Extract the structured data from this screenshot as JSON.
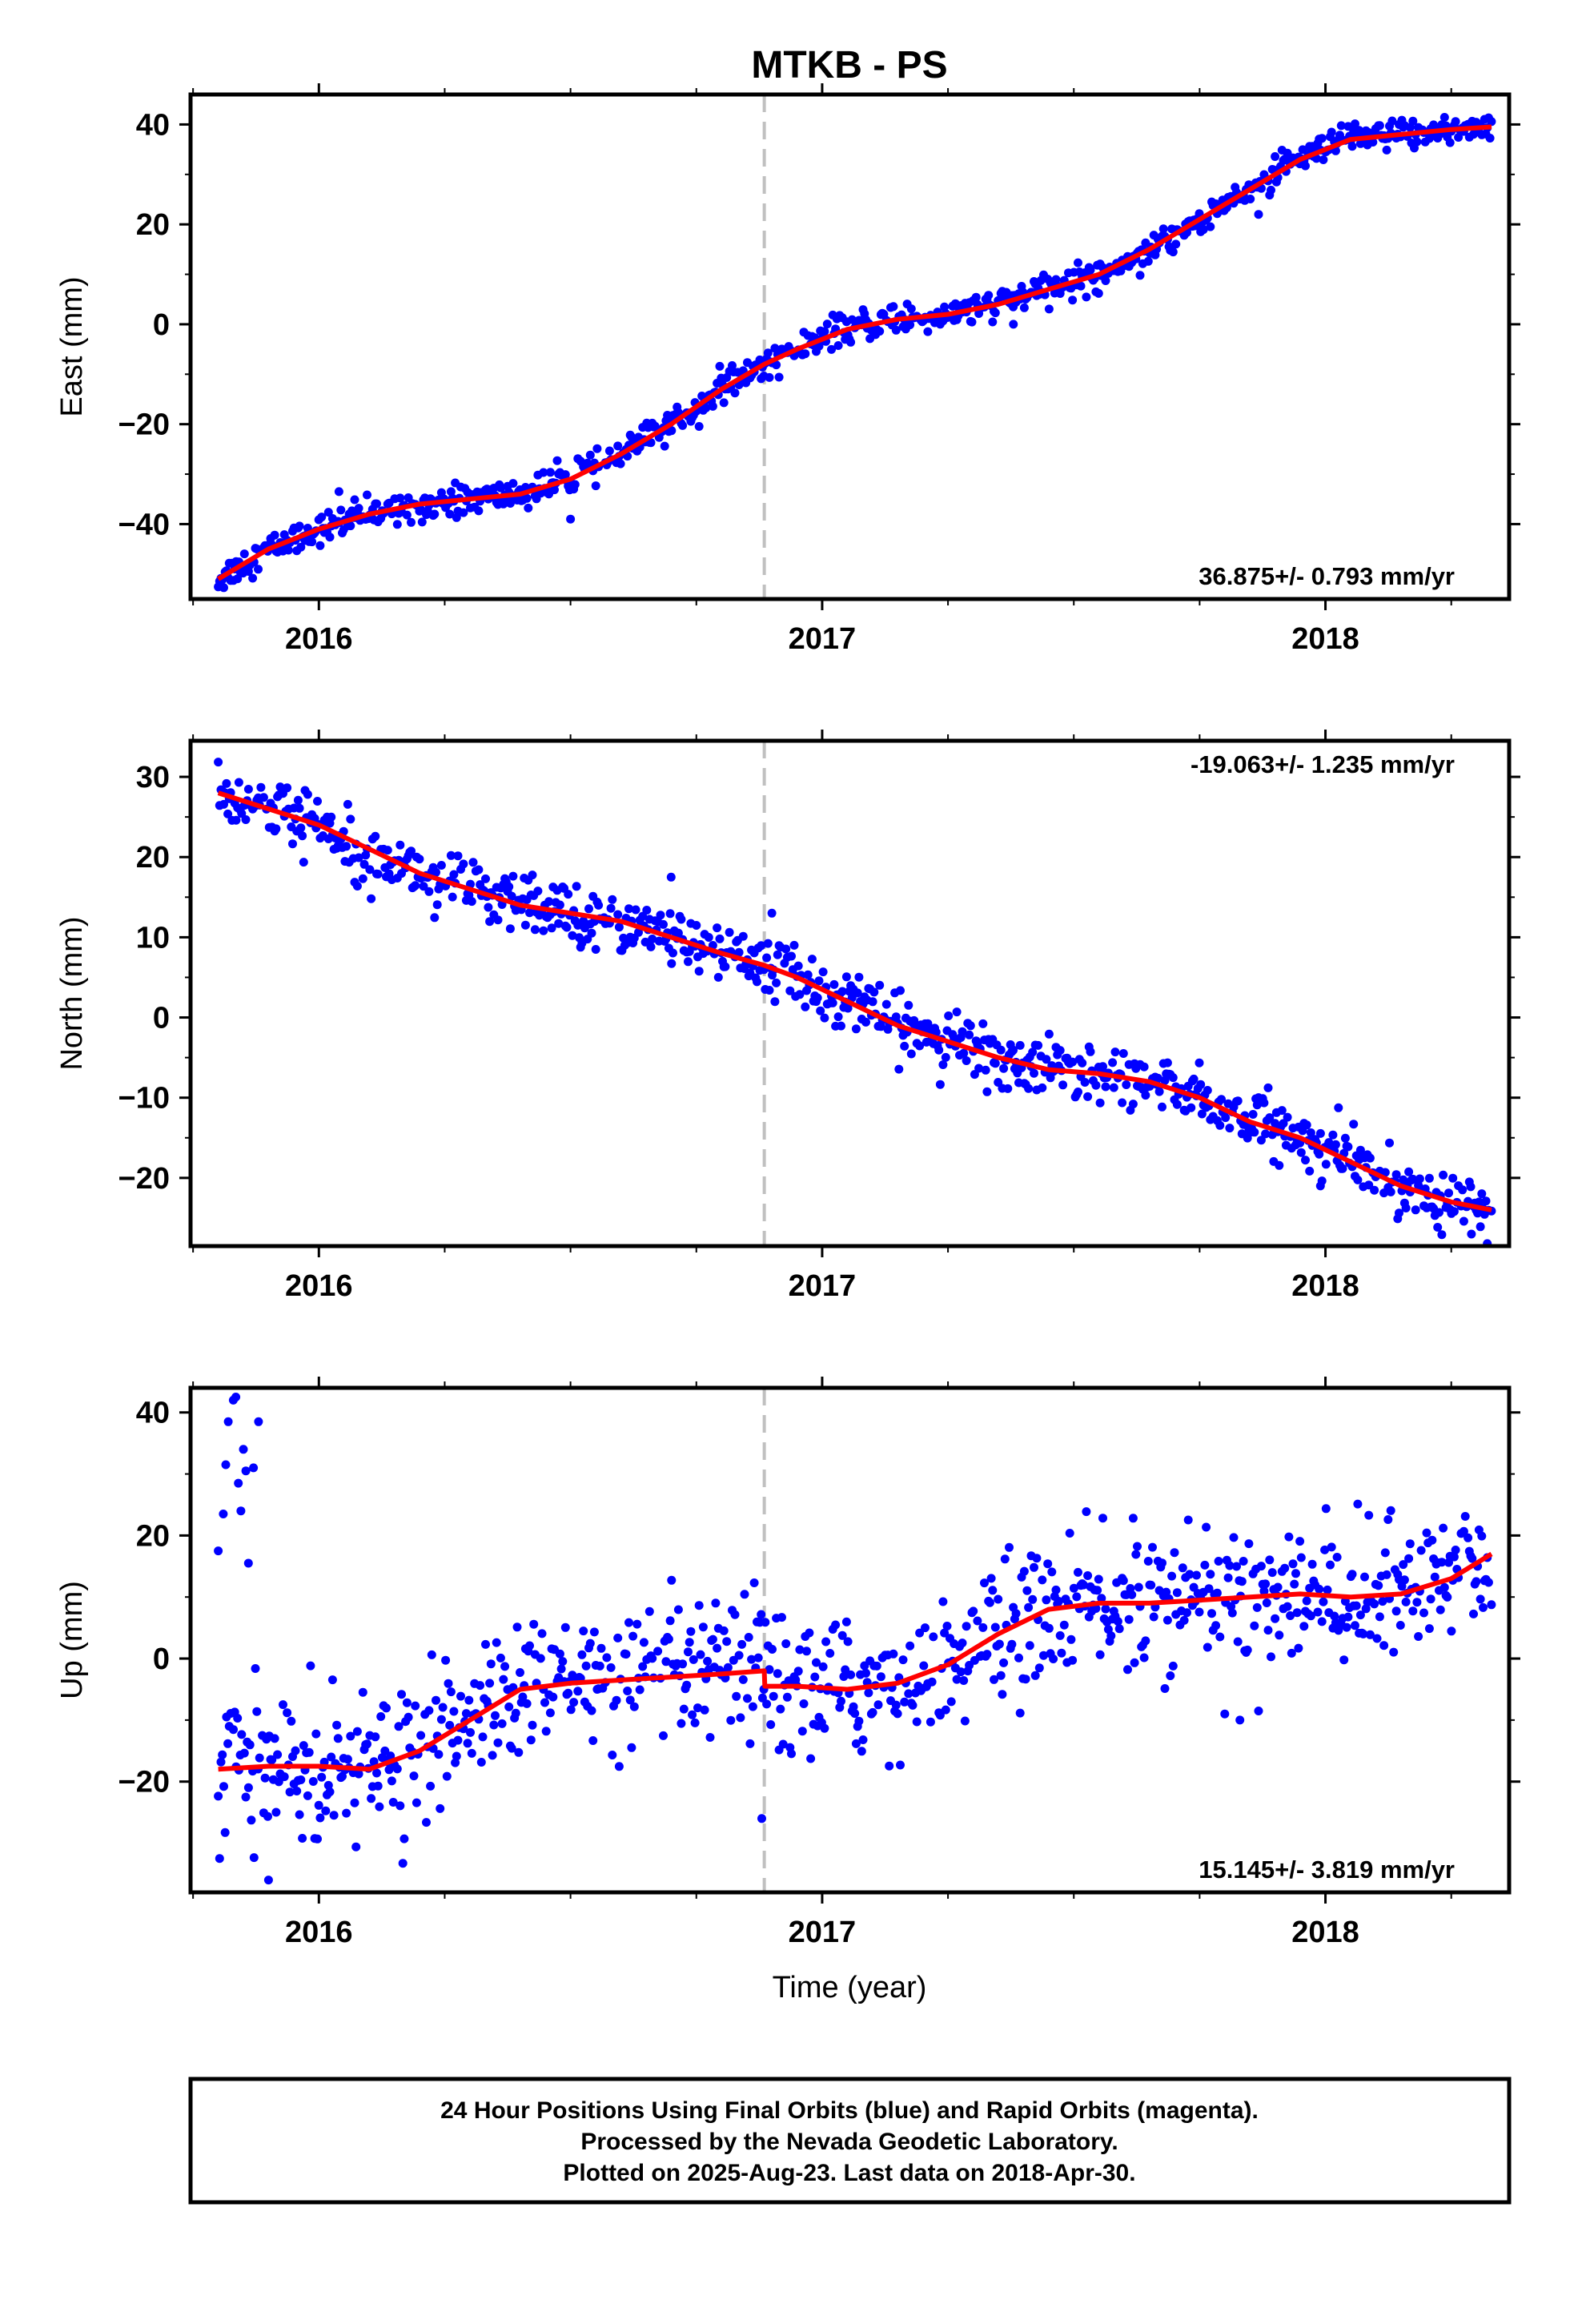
{
  "figure_title": "MTKB - PS",
  "footer": {
    "line1": "24 Hour Positions Using Final Orbits (blue) and Rapid Orbits (magenta).",
    "line2": "Processed by the Nevada Geodetic Laboratory.",
    "line3": "Plotted on 2025-Aug-23. Last data on 2018-Apr-30."
  },
  "colors": {
    "points": "#0000ff",
    "fit": "#ff0000",
    "event_line": "#c0c0c0",
    "frame": "#000000"
  },
  "chart_data": [
    {
      "type": "scatter",
      "title": "MTKB - PS",
      "ylabel": "East (mm)",
      "xlabel": "",
      "rate_text": "36.875+/- 0.793 mm/yr",
      "rate_position": "bottom-right",
      "xlim": [
        2015.745,
        2018.365
      ],
      "ylim": [
        -55,
        46
      ],
      "yticks": [
        -40,
        -20,
        0,
        20,
        40
      ],
      "xticks": [
        2016,
        2017,
        2018
      ],
      "event_x": 2016.885,
      "grid": false,
      "series": [
        {
          "kind": "fit",
          "color": "#ff0000",
          "x": [
            2015.8,
            2015.9,
            2016.0,
            2016.1,
            2016.2,
            2016.3,
            2016.4,
            2016.5,
            2016.6,
            2016.7,
            2016.8,
            2016.885,
            2016.95,
            2017.05,
            2017.15,
            2017.25,
            2017.35,
            2017.45,
            2017.55,
            2017.65,
            2017.75,
            2017.85,
            2017.95,
            2018.05,
            2018.15,
            2018.25,
            2018.33
          ],
          "y": [
            -51,
            -45,
            -41,
            -38,
            -36,
            -35,
            -34,
            -31,
            -26,
            -20,
            -13,
            -8,
            -5,
            -1,
            1,
            2,
            4,
            7,
            10,
            15,
            21,
            27,
            33,
            37,
            38,
            39,
            39.5
          ],
          "noise": 1.5,
          "outliers": [
            [
              2016.04,
              -33.5
            ],
            [
              2016.5,
              -39
            ],
            [
              2017.38,
              0
            ]
          ]
        }
      ]
    },
    {
      "type": "scatter",
      "ylabel": "North (mm)",
      "xlabel": "",
      "rate_text": "-19.063+/- 1.235 mm/yr",
      "rate_position": "top-right",
      "xlim": [
        2015.745,
        2018.365
      ],
      "ylim": [
        -28.5,
        34.5
      ],
      "yticks": [
        -20,
        -10,
        0,
        10,
        20,
        30
      ],
      "xticks": [
        2016,
        2017,
        2018
      ],
      "event_x": 2016.885,
      "grid": false,
      "series": [
        {
          "kind": "fit",
          "color": "#ff0000",
          "x": [
            2015.8,
            2015.9,
            2016.0,
            2016.1,
            2016.2,
            2016.3,
            2016.4,
            2016.5,
            2016.6,
            2016.7,
            2016.8,
            2016.885,
            2016.95,
            2017.05,
            2017.15,
            2017.25,
            2017.35,
            2017.45,
            2017.55,
            2017.65,
            2017.75,
            2017.85,
            2017.95,
            2018.05,
            2018.15,
            2018.25,
            2018.33
          ],
          "y": [
            28,
            26,
            24,
            21,
            18,
            16,
            14,
            13,
            12,
            10,
            8,
            6.5,
            5,
            2,
            -1,
            -3,
            -5,
            -6.5,
            -7,
            -8,
            -10,
            -13,
            -15,
            -18,
            -21,
            -23,
            -24
          ],
          "noise": 1.8,
          "outliers": [
            [
              2016.7,
              17.5
            ],
            [
              2016.9,
              13
            ],
            [
              2017.99,
              -21
            ],
            [
              2018.29,
              -27
            ]
          ]
        }
      ]
    },
    {
      "type": "scatter",
      "ylabel": "Up (mm)",
      "xlabel": "Time (year)",
      "rate_text": "15.145+/- 3.819 mm/yr",
      "rate_position": "bottom-right",
      "xlim": [
        2015.745,
        2018.365
      ],
      "ylim": [
        -38,
        44
      ],
      "yticks": [
        -20,
        0,
        20,
        40
      ],
      "xticks": [
        2016,
        2017,
        2018
      ],
      "event_x": 2016.885,
      "grid": false,
      "series": [
        {
          "kind": "fit",
          "color": "#ff0000",
          "x": [
            2015.8,
            2015.9,
            2016.0,
            2016.1,
            2016.2,
            2016.3,
            2016.4,
            2016.5,
            2016.6,
            2016.7,
            2016.8,
            2016.885,
            2016.886,
            2016.95,
            2017.05,
            2017.15,
            2017.25,
            2017.35,
            2017.45,
            2017.55,
            2017.65,
            2017.75,
            2017.85,
            2017.95,
            2018.05,
            2018.15,
            2018.25,
            2018.33
          ],
          "y": [
            -18,
            -17.5,
            -17.5,
            -18,
            -15,
            -10,
            -5,
            -4,
            -3.5,
            -3,
            -2.5,
            -2,
            -4.5,
            -4.5,
            -5,
            -4,
            -1,
            4,
            8,
            9,
            9,
            9.5,
            10,
            10.5,
            10,
            10.5,
            13,
            17
          ],
          "noise": 5.5,
          "outliers": [
            [
              2015.8,
              17.5
            ],
            [
              2015.81,
              23.5
            ],
            [
              2015.815,
              31.5
            ],
            [
              2015.82,
              38.5
            ],
            [
              2015.83,
              42
            ],
            [
              2015.835,
              42.5
            ],
            [
              2015.84,
              28.5
            ],
            [
              2015.845,
              24
            ],
            [
              2015.85,
              34
            ],
            [
              2015.855,
              30.5
            ],
            [
              2015.86,
              15.5
            ],
            [
              2015.87,
              31
            ],
            [
              2015.88,
              38.5
            ],
            [
              2015.9,
              -36
            ],
            [
              2016.88,
              -26
            ],
            [
              2017.8,
              -9
            ],
            [
              2017.83,
              -10
            ]
          ]
        }
      ]
    }
  ]
}
